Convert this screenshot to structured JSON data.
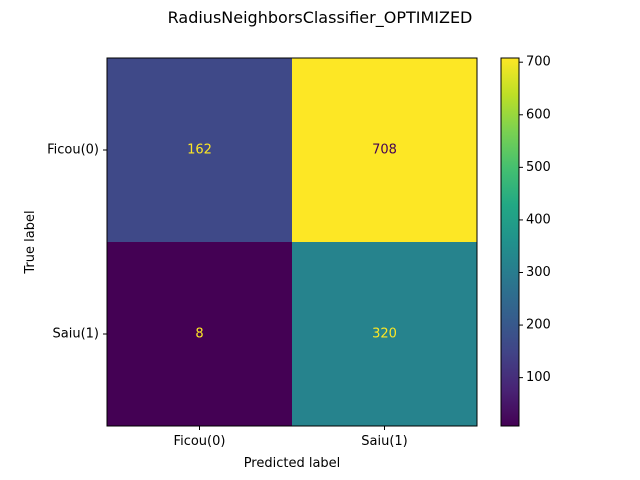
{
  "chart_data": {
    "type": "heatmap",
    "title": "RadiusNeighborsClassifier_OPTIMIZED",
    "xlabel": "Predicted label",
    "ylabel": "True label",
    "x_categories": [
      "Ficou(0)",
      "Saiu(1)"
    ],
    "y_categories": [
      "Ficou(0)",
      "Saiu(1)"
    ],
    "matrix": [
      [
        162,
        708
      ],
      [
        8,
        320
      ]
    ],
    "colormap": "viridis",
    "colorbar": {
      "range": [
        8,
        708
      ],
      "ticks": [
        100,
        200,
        300,
        400,
        500,
        600,
        700
      ],
      "tick_labels": [
        "100",
        "200",
        "300",
        "400",
        "500",
        "600",
        "700"
      ]
    },
    "text_colors": {
      "on_dark": "#fde725",
      "on_bright": "#440154"
    },
    "grid": false
  }
}
